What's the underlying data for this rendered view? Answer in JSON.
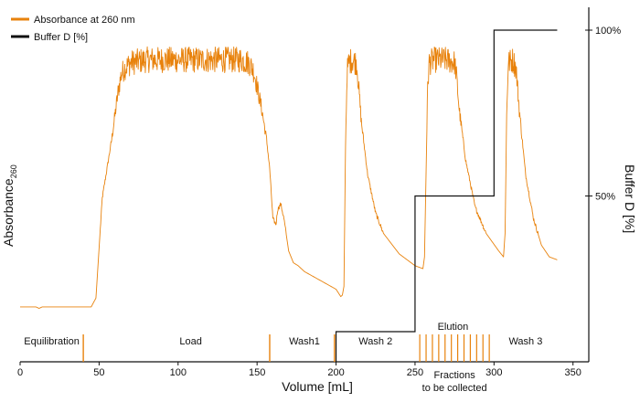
{
  "chart_data": {
    "type": "line",
    "x_axis": {
      "label": "Volume [mL]",
      "range": [
        0,
        360
      ],
      "ticks": [
        0,
        50,
        100,
        150,
        200,
        250,
        300,
        350
      ]
    },
    "y_axis_left": {
      "label_main": "Absorbance",
      "label_sub": "260"
    },
    "y_axis_right": {
      "label": "Buffer D [%]",
      "range": [
        0,
        100
      ],
      "ticks": [
        {
          "value": 50,
          "label": "50%"
        },
        {
          "value": 100,
          "label": "100%"
        }
      ]
    },
    "legend": {
      "position": "top-left",
      "items": [
        {
          "name": "Absorbance at 260 nm",
          "color": "#E8820C"
        },
        {
          "name": "Buffer D [%]",
          "color": "#111111"
        }
      ]
    },
    "colors": {
      "absorbance": "#E8820C",
      "buffer": "#111111"
    },
    "series": [
      {
        "name": "Absorbance at 260 nm",
        "color": "#E8820C",
        "noise": true,
        "points": [
          [
            0,
            5
          ],
          [
            10,
            5
          ],
          [
            12,
            4.5
          ],
          [
            14,
            5
          ],
          [
            40,
            5
          ],
          [
            45,
            5
          ],
          [
            48,
            8
          ],
          [
            50,
            25
          ],
          [
            52,
            42
          ],
          [
            55,
            52
          ],
          [
            58,
            62
          ],
          [
            60,
            70
          ],
          [
            62,
            78
          ],
          [
            64,
            84
          ],
          [
            66,
            86
          ],
          [
            70,
            88
          ],
          [
            80,
            89
          ],
          [
            100,
            89
          ],
          [
            120,
            89
          ],
          [
            140,
            89
          ],
          [
            145,
            88
          ],
          [
            148,
            85
          ],
          [
            150,
            80
          ],
          [
            153,
            72
          ],
          [
            156,
            62
          ],
          [
            158,
            52
          ],
          [
            160,
            35
          ],
          [
            162,
            33
          ],
          [
            163,
            38
          ],
          [
            165,
            40
          ],
          [
            167,
            35
          ],
          [
            170,
            24
          ],
          [
            173,
            20
          ],
          [
            176,
            19
          ],
          [
            180,
            17
          ],
          [
            190,
            14
          ],
          [
            200,
            11
          ],
          [
            203,
            8.5
          ],
          [
            204,
            9
          ],
          [
            205,
            12
          ],
          [
            206,
            60
          ],
          [
            207,
            85
          ],
          [
            208,
            88
          ],
          [
            210,
            89
          ],
          [
            213,
            88
          ],
          [
            214,
            82
          ],
          [
            216,
            68
          ],
          [
            220,
            50
          ],
          [
            225,
            37
          ],
          [
            230,
            30
          ],
          [
            240,
            23
          ],
          [
            250,
            19
          ],
          [
            255,
            18
          ],
          [
            256,
            22
          ],
          [
            258,
            80
          ],
          [
            259,
            88
          ],
          [
            262,
            89
          ],
          [
            270,
            89
          ],
          [
            275,
            88
          ],
          [
            276,
            85
          ],
          [
            278,
            72
          ],
          [
            282,
            55
          ],
          [
            288,
            39
          ],
          [
            295,
            30
          ],
          [
            303,
            24
          ],
          [
            306,
            22
          ],
          [
            307,
            30
          ],
          [
            308,
            70
          ],
          [
            309,
            88
          ],
          [
            312,
            89
          ],
          [
            314,
            86
          ],
          [
            316,
            72
          ],
          [
            320,
            50
          ],
          [
            325,
            35
          ],
          [
            330,
            26
          ],
          [
            335,
            22
          ],
          [
            340,
            21
          ]
        ]
      },
      {
        "name": "Buffer D [%]",
        "color": "#111111",
        "points": [
          [
            200,
            0
          ],
          [
            200,
            9.1
          ],
          [
            250,
            9.1
          ],
          [
            250,
            50
          ],
          [
            300,
            50
          ],
          [
            300,
            100
          ],
          [
            340,
            100
          ]
        ]
      }
    ],
    "phase_labels": [
      {
        "label": "Equilibration",
        "x": 20
      },
      {
        "label": "Load",
        "x": 108
      },
      {
        "label": "Wash1",
        "x": 180
      },
      {
        "label": "Wash 2",
        "x": 225
      },
      {
        "label": "Elution",
        "x": 274,
        "row": "upper"
      },
      {
        "label": "Wash 3",
        "x": 320
      }
    ],
    "phase_markers": [
      40,
      158,
      199
    ],
    "fraction_markers": [
      253,
      257,
      261,
      265,
      269,
      273,
      277,
      281,
      285,
      289,
      293,
      297
    ],
    "annotations": [
      {
        "lines": [
          "Fractions",
          "to be collected"
        ],
        "x": 275
      }
    ]
  }
}
